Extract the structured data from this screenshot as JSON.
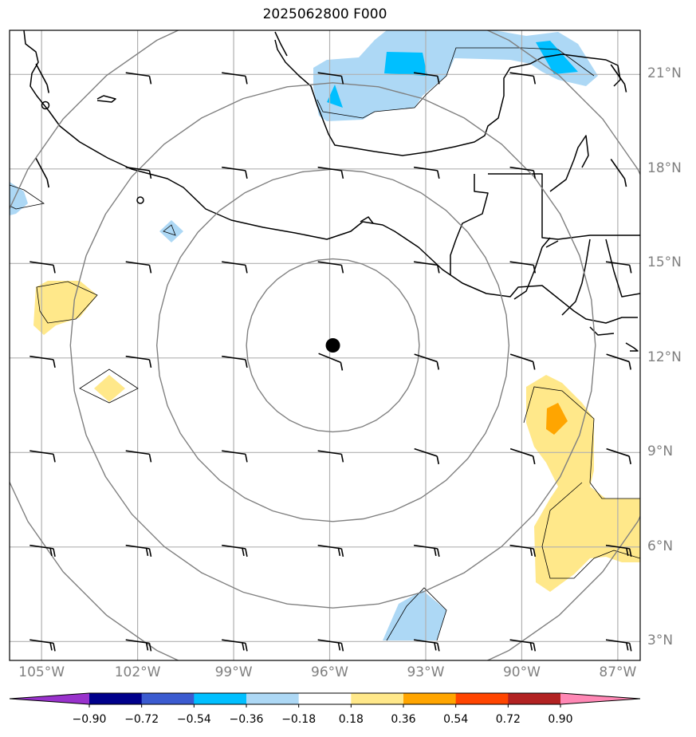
{
  "title": "2025062800 F000",
  "colors": {
    "land_outline": "#000000",
    "grid": "#b0b0b0",
    "range_rings": "#808080",
    "center_marker": "#000000",
    "label_gray": "#808080"
  },
  "map": {
    "lon_range": [
      -106,
      -86.3
    ],
    "lat_range": [
      2.4,
      22.4
    ],
    "storm_center": {
      "lon": -95.9,
      "lat": 12.4
    },
    "lon_ticks": [
      {
        "value": -105,
        "label": "105°W"
      },
      {
        "value": -102,
        "label": "102°W"
      },
      {
        "value": -99,
        "label": "99°W"
      },
      {
        "value": -96,
        "label": "96°W"
      },
      {
        "value": -93,
        "label": "93°W"
      },
      {
        "value": -90,
        "label": "90°W"
      },
      {
        "value": -87,
        "label": "87°W"
      }
    ],
    "lat_ticks": [
      {
        "value": 21,
        "label": "21°N"
      },
      {
        "value": 18,
        "label": "18°N"
      },
      {
        "value": 15,
        "label": "15°N"
      },
      {
        "value": 12,
        "label": "12°N"
      },
      {
        "value": 9,
        "label": "9°N"
      },
      {
        "value": 6,
        "label": "6°N"
      },
      {
        "value": 3,
        "label": "3°N"
      }
    ],
    "range_ring_radii_deg": [
      2.7,
      5.5,
      8.2,
      11.0
    ]
  },
  "colorbar": {
    "ticks": [
      "−0.90",
      "−0.72",
      "−0.54",
      "−0.36",
      "−0.18",
      "0.18",
      "0.36",
      "0.54",
      "0.72",
      "0.90"
    ],
    "colors": [
      "#9932cc",
      "#00008b",
      "#3b5bd0",
      "#00bfff",
      "#add8f5",
      "#ffffff",
      "#ffe88a",
      "#ffa500",
      "#ff4500",
      "#b22222",
      "#ff88b5"
    ]
  },
  "wind_barb_grid": {
    "lons": [
      -105,
      -102,
      -99,
      -96,
      -93,
      -90,
      -87
    ],
    "lats": [
      21,
      18,
      15,
      12,
      9,
      6,
      3
    ]
  },
  "shaded_areas": [
    {
      "level": "-0.36",
      "color": "#add8f5",
      "region": "Gulf of Mexico / Bay of Campeche"
    },
    {
      "level": "-0.54",
      "color": "#00bfff",
      "region": "Bay of Campeche cores"
    },
    {
      "level": "0.36",
      "color": "#ffe88a",
      "region": "off southwest Mexico and west of Central America"
    },
    {
      "level": "0.54",
      "color": "#ffa500",
      "region": "near 89°W 10°N"
    }
  ]
}
